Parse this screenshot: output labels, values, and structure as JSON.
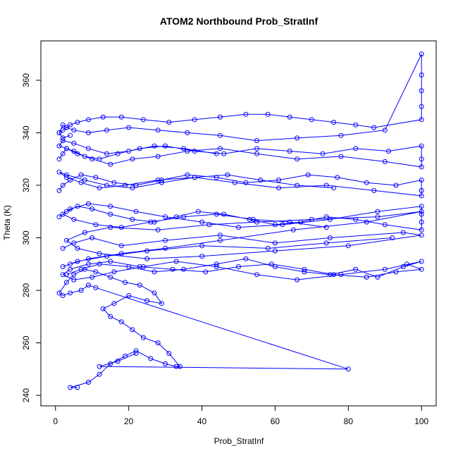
{
  "chart_data": {
    "type": "scatter",
    "title": "ATOM2 Northbound Prob_StratInf",
    "xlabel": "Prob_StratInf",
    "ylabel": "Theta (K)",
    "xlim": [
      -4,
      104
    ],
    "ylim": [
      236,
      375
    ],
    "x_ticks": [
      0,
      20,
      40,
      60,
      80,
      100
    ],
    "y_ticks": [
      240,
      260,
      280,
      300,
      320,
      340,
      360
    ],
    "grid": false,
    "legend": "none",
    "point_style": "open circles connected by lines",
    "color": "#0000ff",
    "series": [
      {
        "x": [
          6,
          4,
          9,
          12,
          15,
          19,
          22,
          26,
          30,
          33,
          34,
          31,
          28,
          24,
          21,
          18,
          15,
          13,
          16,
          20,
          25,
          29,
          27,
          23,
          19,
          15,
          11,
          8,
          5,
          3,
          1,
          2,
          4,
          7,
          9,
          11,
          80,
          12,
          17,
          22
        ],
        "y": [
          243,
          243,
          245,
          248,
          252,
          255,
          257,
          254,
          252,
          251,
          251,
          256,
          260,
          262,
          265,
          268,
          270,
          273,
          275,
          278,
          276,
          275,
          279,
          282,
          283,
          285,
          287,
          288,
          286,
          283,
          279,
          278,
          279,
          280,
          282,
          281,
          250,
          251,
          253,
          256
        ],
        "name": ""
      },
      {
        "x": [
          2,
          5,
          10,
          18,
          30,
          45,
          60,
          75,
          95,
          100,
          80,
          60,
          40,
          25,
          12,
          6,
          3,
          8,
          15,
          28,
          42,
          55,
          70,
          88,
          100,
          85,
          65,
          45,
          30,
          18,
          9,
          4,
          2,
          6,
          14,
          25,
          40,
          58,
          74,
          92
        ],
        "y": [
          296,
          298,
          300,
          297,
          299,
          301,
          298,
          300,
          302,
          301,
          297,
          295,
          293,
          292,
          294,
          296,
          299,
          302,
          304,
          303,
          305,
          306,
          307,
          308,
          310,
          306,
          303,
          299,
          296,
          294,
          292,
          290,
          289,
          291,
          293,
          295,
          297,
          296,
          298,
          300
        ],
        "name": ""
      },
      {
        "x": [
          3,
          7,
          12,
          20,
          27,
          35,
          44,
          52,
          60,
          68,
          75,
          82,
          88,
          95,
          100,
          90,
          78,
          66,
          55,
          44,
          33,
          24,
          16,
          10,
          5,
          2,
          4,
          9,
          15,
          23,
          32,
          41,
          50,
          59,
          68,
          76,
          85,
          93,
          100,
          96
        ],
        "y": [
          286,
          288,
          290,
          289,
          287,
          288,
          290,
          292,
          289,
          287,
          286,
          288,
          285,
          289,
          291,
          288,
          286,
          284,
          286,
          289,
          291,
          289,
          287,
          285,
          284,
          286,
          288,
          290,
          291,
          289,
          288,
          287,
          289,
          290,
          288,
          286,
          285,
          287,
          288,
          290
        ],
        "name": ""
      },
      {
        "x": [
          1,
          3,
          6,
          10,
          15,
          21,
          27,
          33,
          39,
          46,
          53,
          60,
          67,
          74,
          82,
          90,
          100,
          100,
          100,
          100,
          88,
          75,
          62,
          50,
          40,
          30,
          22,
          15,
          9,
          4,
          2,
          5,
          11,
          18,
          26,
          35,
          44,
          54,
          64,
          74
        ],
        "y": [
          308,
          310,
          312,
          311,
          309,
          307,
          306,
          308,
          310,
          309,
          307,
          305,
          306,
          308,
          307,
          305,
          303,
          306,
          309,
          312,
          310,
          307,
          305,
          304,
          306,
          308,
          310,
          312,
          313,
          311,
          309,
          307,
          305,
          304,
          306,
          308,
          309,
          307,
          306,
          304
        ],
        "name": ""
      },
      {
        "x": [
          1,
          2,
          4,
          7,
          11,
          16,
          22,
          29,
          36,
          44,
          52,
          61,
          69,
          77,
          85,
          93,
          100,
          100,
          100,
          87,
          74,
          61,
          49,
          38,
          28,
          19,
          12,
          7,
          3,
          1,
          3,
          8,
          14,
          21,
          29,
          38,
          47,
          56,
          66,
          76
        ],
        "y": [
          318,
          320,
          322,
          324,
          323,
          321,
          320,
          322,
          324,
          323,
          321,
          322,
          324,
          323,
          321,
          320,
          322,
          318,
          316,
          318,
          320,
          319,
          321,
          323,
          322,
          320,
          319,
          321,
          323,
          325,
          324,
          322,
          320,
          319,
          321,
          323,
          324,
          322,
          320,
          319
        ],
        "name": ""
      },
      {
        "x": [
          1,
          2,
          3,
          5,
          8,
          12,
          17,
          23,
          30,
          38,
          46,
          55,
          64,
          73,
          82,
          91,
          100,
          100,
          100,
          90,
          78,
          66,
          55,
          45,
          36,
          28,
          21,
          15,
          10,
          6,
          3,
          1,
          2,
          5,
          9,
          14,
          20,
          27,
          35,
          44
        ],
        "y": [
          330,
          332,
          334,
          333,
          331,
          330,
          332,
          334,
          335,
          333,
          332,
          334,
          333,
          332,
          334,
          333,
          335,
          330,
          327,
          329,
          331,
          330,
          332,
          334,
          333,
          331,
          330,
          328,
          330,
          332,
          334,
          335,
          337,
          336,
          334,
          332,
          333,
          335,
          334,
          332
        ],
        "name": ""
      },
      {
        "x": [
          1,
          2,
          3,
          4,
          6,
          9,
          13,
          18,
          24,
          31,
          38,
          45,
          52,
          58,
          64,
          70,
          76,
          82,
          87,
          100,
          100,
          100,
          100,
          100,
          90,
          78,
          66,
          55,
          45,
          36,
          28,
          20,
          14,
          9,
          5,
          3,
          2,
          1,
          2,
          4
        ],
        "y": [
          340,
          341,
          342,
          343,
          344,
          345,
          346,
          346,
          345,
          344,
          345,
          346,
          347,
          347,
          346,
          345,
          344,
          343,
          342,
          345,
          350,
          356,
          362,
          370,
          341,
          339,
          338,
          337,
          339,
          340,
          341,
          342,
          341,
          340,
          341,
          342,
          343,
          340,
          338,
          339
        ],
        "name": ""
      }
    ]
  }
}
